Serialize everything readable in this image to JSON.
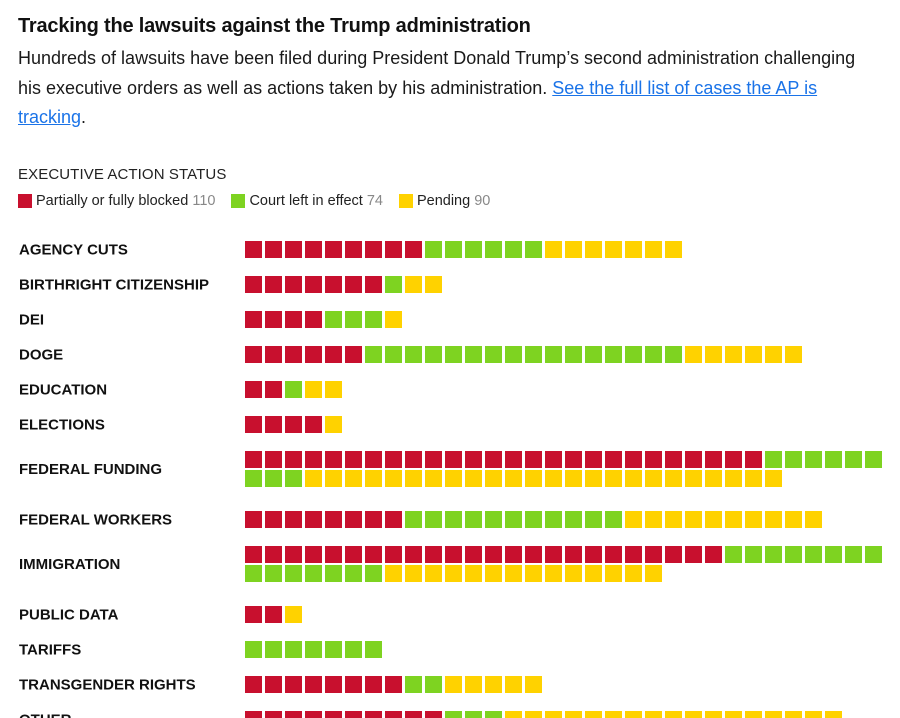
{
  "header": {
    "title": "Tracking the lawsuits against the Trump administration",
    "description": "Hundreds of lawsuits have been filed during President Donald Trump’s second administration challenging his executive orders as well as actions taken by his administration. ",
    "link_text": "See the full list of cases the AP is tracking",
    "link_suffix": "."
  },
  "legend": {
    "title": "EXECUTIVE ACTION STATUS",
    "items": [
      {
        "label": "Partially or fully blocked",
        "count": "110",
        "color": "#c8102e"
      },
      {
        "label": "Court left in effect",
        "count": "74",
        "color": "#7ed321"
      },
      {
        "label": "Pending",
        "count": "90",
        "color": "#ffd200"
      }
    ]
  },
  "chart_data": {
    "type": "bar",
    "stacked": true,
    "categories": [
      "AGENCY CUTS",
      "BIRTHRIGHT CITIZENSHIP",
      "DEI",
      "DOGE",
      "EDUCATION",
      "ELECTIONS",
      "FEDERAL FUNDING",
      "FEDERAL WORKERS",
      "IMMIGRATION",
      "PUBLIC DATA",
      "TARIFFS",
      "TRANSGENDER RIGHTS",
      "OTHER"
    ],
    "series": [
      {
        "name": "Partially or fully blocked",
        "color": "#c8102e",
        "values": [
          9,
          7,
          4,
          6,
          2,
          4,
          26,
          8,
          24,
          2,
          0,
          8,
          10
        ]
      },
      {
        "name": "Court left in effect",
        "color": "#7ed321",
        "values": [
          6,
          1,
          3,
          16,
          1,
          0,
          9,
          11,
          15,
          0,
          7,
          2,
          3
        ]
      },
      {
        "name": "Pending",
        "color": "#ffd200",
        "values": [
          7,
          2,
          1,
          6,
          2,
          1,
          24,
          10,
          14,
          1,
          0,
          5,
          17
        ]
      }
    ],
    "max_per_row": 32
  }
}
